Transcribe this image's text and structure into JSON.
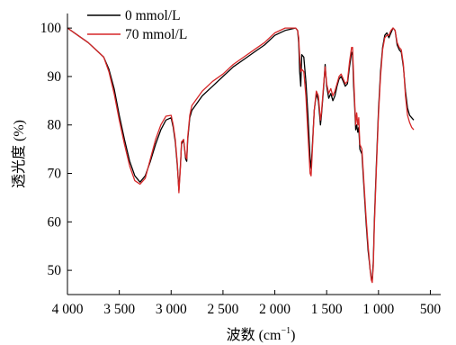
{
  "chart_data": {
    "type": "line",
    "xlabel": "波数 (cm",
    "xlabel_sup": "−1",
    "xlabel_end": ")",
    "ylabel": "透光度 (%)",
    "xlim": [
      4000,
      400
    ],
    "ylim": [
      45,
      103
    ],
    "x_ticks": [
      {
        "value": 4000,
        "label": "4 000"
      },
      {
        "value": 3500,
        "label": "3 500"
      },
      {
        "value": 3000,
        "label": "3 000"
      },
      {
        "value": 2500,
        "label": "2 500"
      },
      {
        "value": 2000,
        "label": "2 000"
      },
      {
        "value": 1500,
        "label": "1 500"
      },
      {
        "value": 1000,
        "label": "1 000"
      },
      {
        "value": 500,
        "label": "500"
      }
    ],
    "y_ticks": [
      {
        "value": 50,
        "label": "50"
      },
      {
        "value": 60,
        "label": "60"
      },
      {
        "value": 70,
        "label": "70"
      },
      {
        "value": 80,
        "label": "80"
      },
      {
        "value": 90,
        "label": "90"
      },
      {
        "value": 100,
        "label": "100"
      }
    ],
    "grid": false,
    "legend_position": "top-left",
    "series": [
      {
        "name": "0 mmol/L",
        "color": "#000000",
        "points": [
          [
            4000,
            100.0
          ],
          [
            3900,
            98.5
          ],
          [
            3800,
            97.0
          ],
          [
            3700,
            95.0
          ],
          [
            3650,
            94.0
          ],
          [
            3600,
            91.5
          ],
          [
            3550,
            87.5
          ],
          [
            3500,
            82.0
          ],
          [
            3450,
            77.0
          ],
          [
            3400,
            72.5
          ],
          [
            3350,
            69.5
          ],
          [
            3300,
            68.2
          ],
          [
            3250,
            69.5
          ],
          [
            3200,
            72.5
          ],
          [
            3150,
            76.0
          ],
          [
            3100,
            79.0
          ],
          [
            3050,
            81.0
          ],
          [
            3000,
            81.5
          ],
          [
            2980,
            79.5
          ],
          [
            2960,
            76.5
          ],
          [
            2940,
            71.5
          ],
          [
            2925,
            66.5
          ],
          [
            2910,
            72.0
          ],
          [
            2900,
            76.0
          ],
          [
            2880,
            77.0
          ],
          [
            2860,
            73.0
          ],
          [
            2850,
            72.5
          ],
          [
            2840,
            77.0
          ],
          [
            2820,
            81.5
          ],
          [
            2800,
            83.0
          ],
          [
            2700,
            86.0
          ],
          [
            2600,
            88.0
          ],
          [
            2500,
            90.0
          ],
          [
            2400,
            92.0
          ],
          [
            2300,
            93.5
          ],
          [
            2200,
            95.0
          ],
          [
            2100,
            96.5
          ],
          [
            2000,
            98.5
          ],
          [
            1900,
            99.5
          ],
          [
            1800,
            100.0
          ],
          [
            1780,
            99.5
          ],
          [
            1770,
            97.0
          ],
          [
            1760,
            91.0
          ],
          [
            1750,
            88.0
          ],
          [
            1740,
            94.5
          ],
          [
            1720,
            94.0
          ],
          [
            1700,
            89.0
          ],
          [
            1680,
            82.0
          ],
          [
            1660,
            73.0
          ],
          [
            1650,
            71.0
          ],
          [
            1640,
            75.0
          ],
          [
            1620,
            83.0
          ],
          [
            1600,
            86.5
          ],
          [
            1580,
            85.0
          ],
          [
            1560,
            80.0
          ],
          [
            1550,
            82.0
          ],
          [
            1530,
            87.5
          ],
          [
            1515,
            92.5
          ],
          [
            1500,
            88.0
          ],
          [
            1480,
            85.5
          ],
          [
            1460,
            86.5
          ],
          [
            1440,
            85.0
          ],
          [
            1420,
            86.0
          ],
          [
            1400,
            88.0
          ],
          [
            1380,
            89.5
          ],
          [
            1360,
            90.0
          ],
          [
            1340,
            89.0
          ],
          [
            1320,
            88.0
          ],
          [
            1300,
            88.5
          ],
          [
            1280,
            92.0
          ],
          [
            1260,
            95.0
          ],
          [
            1250,
            94.5
          ],
          [
            1240,
            88.0
          ],
          [
            1230,
            84.0
          ],
          [
            1220,
            79.0
          ],
          [
            1210,
            80.0
          ],
          [
            1200,
            78.5
          ],
          [
            1190,
            79.5
          ],
          [
            1180,
            75.0
          ],
          [
            1160,
            74.0
          ],
          [
            1140,
            67.0
          ],
          [
            1120,
            60.0
          ],
          [
            1100,
            54.0
          ],
          [
            1090,
            52.0
          ],
          [
            1080,
            50.0
          ],
          [
            1070,
            48.5
          ],
          [
            1060,
            48.0
          ],
          [
            1050,
            52.0
          ],
          [
            1040,
            60.0
          ],
          [
            1020,
            72.0
          ],
          [
            1000,
            83.0
          ],
          [
            980,
            91.0
          ],
          [
            960,
            96.0
          ],
          [
            940,
            98.5
          ],
          [
            920,
            99.0
          ],
          [
            900,
            98.0
          ],
          [
            880,
            99.0
          ],
          [
            860,
            100.0
          ],
          [
            840,
            99.5
          ],
          [
            820,
            96.5
          ],
          [
            800,
            95.5
          ],
          [
            780,
            95.0
          ],
          [
            760,
            92.0
          ],
          [
            740,
            87.0
          ],
          [
            720,
            83.5
          ],
          [
            700,
            82.0
          ],
          [
            680,
            81.5
          ],
          [
            660,
            81.0
          ]
        ]
      },
      {
        "name": "70 mmol/L",
        "color": "#d62728",
        "points": [
          [
            4000,
            100.0
          ],
          [
            3900,
            98.5
          ],
          [
            3800,
            97.0
          ],
          [
            3700,
            95.0
          ],
          [
            3650,
            94.0
          ],
          [
            3600,
            91.0
          ],
          [
            3550,
            86.5
          ],
          [
            3500,
            81.0
          ],
          [
            3450,
            76.0
          ],
          [
            3400,
            71.5
          ],
          [
            3350,
            68.5
          ],
          [
            3300,
            67.8
          ],
          [
            3250,
            69.0
          ],
          [
            3200,
            73.0
          ],
          [
            3150,
            77.0
          ],
          [
            3100,
            80.0
          ],
          [
            3050,
            81.8
          ],
          [
            3000,
            82.0
          ],
          [
            2980,
            80.0
          ],
          [
            2960,
            77.0
          ],
          [
            2940,
            72.0
          ],
          [
            2925,
            66.0
          ],
          [
            2910,
            71.5
          ],
          [
            2900,
            76.5
          ],
          [
            2880,
            77.0
          ],
          [
            2860,
            73.5
          ],
          [
            2850,
            73.0
          ],
          [
            2840,
            77.5
          ],
          [
            2820,
            82.0
          ],
          [
            2800,
            84.0
          ],
          [
            2700,
            87.0
          ],
          [
            2600,
            89.0
          ],
          [
            2500,
            90.5
          ],
          [
            2400,
            92.5
          ],
          [
            2300,
            94.0
          ],
          [
            2200,
            95.5
          ],
          [
            2100,
            97.0
          ],
          [
            2000,
            99.0
          ],
          [
            1900,
            100.0
          ],
          [
            1800,
            100.0
          ],
          [
            1780,
            99.5
          ],
          [
            1770,
            98.0
          ],
          [
            1760,
            94.0
          ],
          [
            1750,
            91.0
          ],
          [
            1740,
            91.5
          ],
          [
            1720,
            91.0
          ],
          [
            1700,
            86.0
          ],
          [
            1680,
            78.0
          ],
          [
            1660,
            70.0
          ],
          [
            1650,
            69.5
          ],
          [
            1640,
            74.0
          ],
          [
            1620,
            83.0
          ],
          [
            1600,
            87.0
          ],
          [
            1580,
            86.0
          ],
          [
            1560,
            81.0
          ],
          [
            1550,
            82.5
          ],
          [
            1530,
            88.0
          ],
          [
            1515,
            92.0
          ],
          [
            1500,
            88.5
          ],
          [
            1480,
            86.5
          ],
          [
            1460,
            87.5
          ],
          [
            1440,
            86.0
          ],
          [
            1420,
            87.0
          ],
          [
            1400,
            88.5
          ],
          [
            1380,
            90.0
          ],
          [
            1360,
            90.5
          ],
          [
            1340,
            89.5
          ],
          [
            1320,
            88.5
          ],
          [
            1300,
            89.0
          ],
          [
            1280,
            93.0
          ],
          [
            1260,
            96.0
          ],
          [
            1250,
            96.0
          ],
          [
            1240,
            90.0
          ],
          [
            1230,
            85.0
          ],
          [
            1220,
            80.0
          ],
          [
            1210,
            82.5
          ],
          [
            1200,
            80.0
          ],
          [
            1190,
            81.5
          ],
          [
            1180,
            76.0
          ],
          [
            1160,
            75.0
          ],
          [
            1140,
            68.0
          ],
          [
            1120,
            61.0
          ],
          [
            1100,
            55.0
          ],
          [
            1090,
            52.5
          ],
          [
            1080,
            50.0
          ],
          [
            1070,
            48.0
          ],
          [
            1060,
            47.5
          ],
          [
            1050,
            51.0
          ],
          [
            1040,
            59.0
          ],
          [
            1020,
            71.0
          ],
          [
            1000,
            82.0
          ],
          [
            980,
            90.0
          ],
          [
            960,
            95.5
          ],
          [
            940,
            98.0
          ],
          [
            920,
            98.5
          ],
          [
            900,
            98.5
          ],
          [
            880,
            99.5
          ],
          [
            860,
            100.0
          ],
          [
            840,
            99.5
          ],
          [
            820,
            97.0
          ],
          [
            800,
            96.0
          ],
          [
            780,
            95.5
          ],
          [
            760,
            92.5
          ],
          [
            740,
            86.0
          ],
          [
            720,
            82.0
          ],
          [
            700,
            80.5
          ],
          [
            680,
            79.5
          ],
          [
            660,
            79.0
          ]
        ]
      }
    ]
  }
}
